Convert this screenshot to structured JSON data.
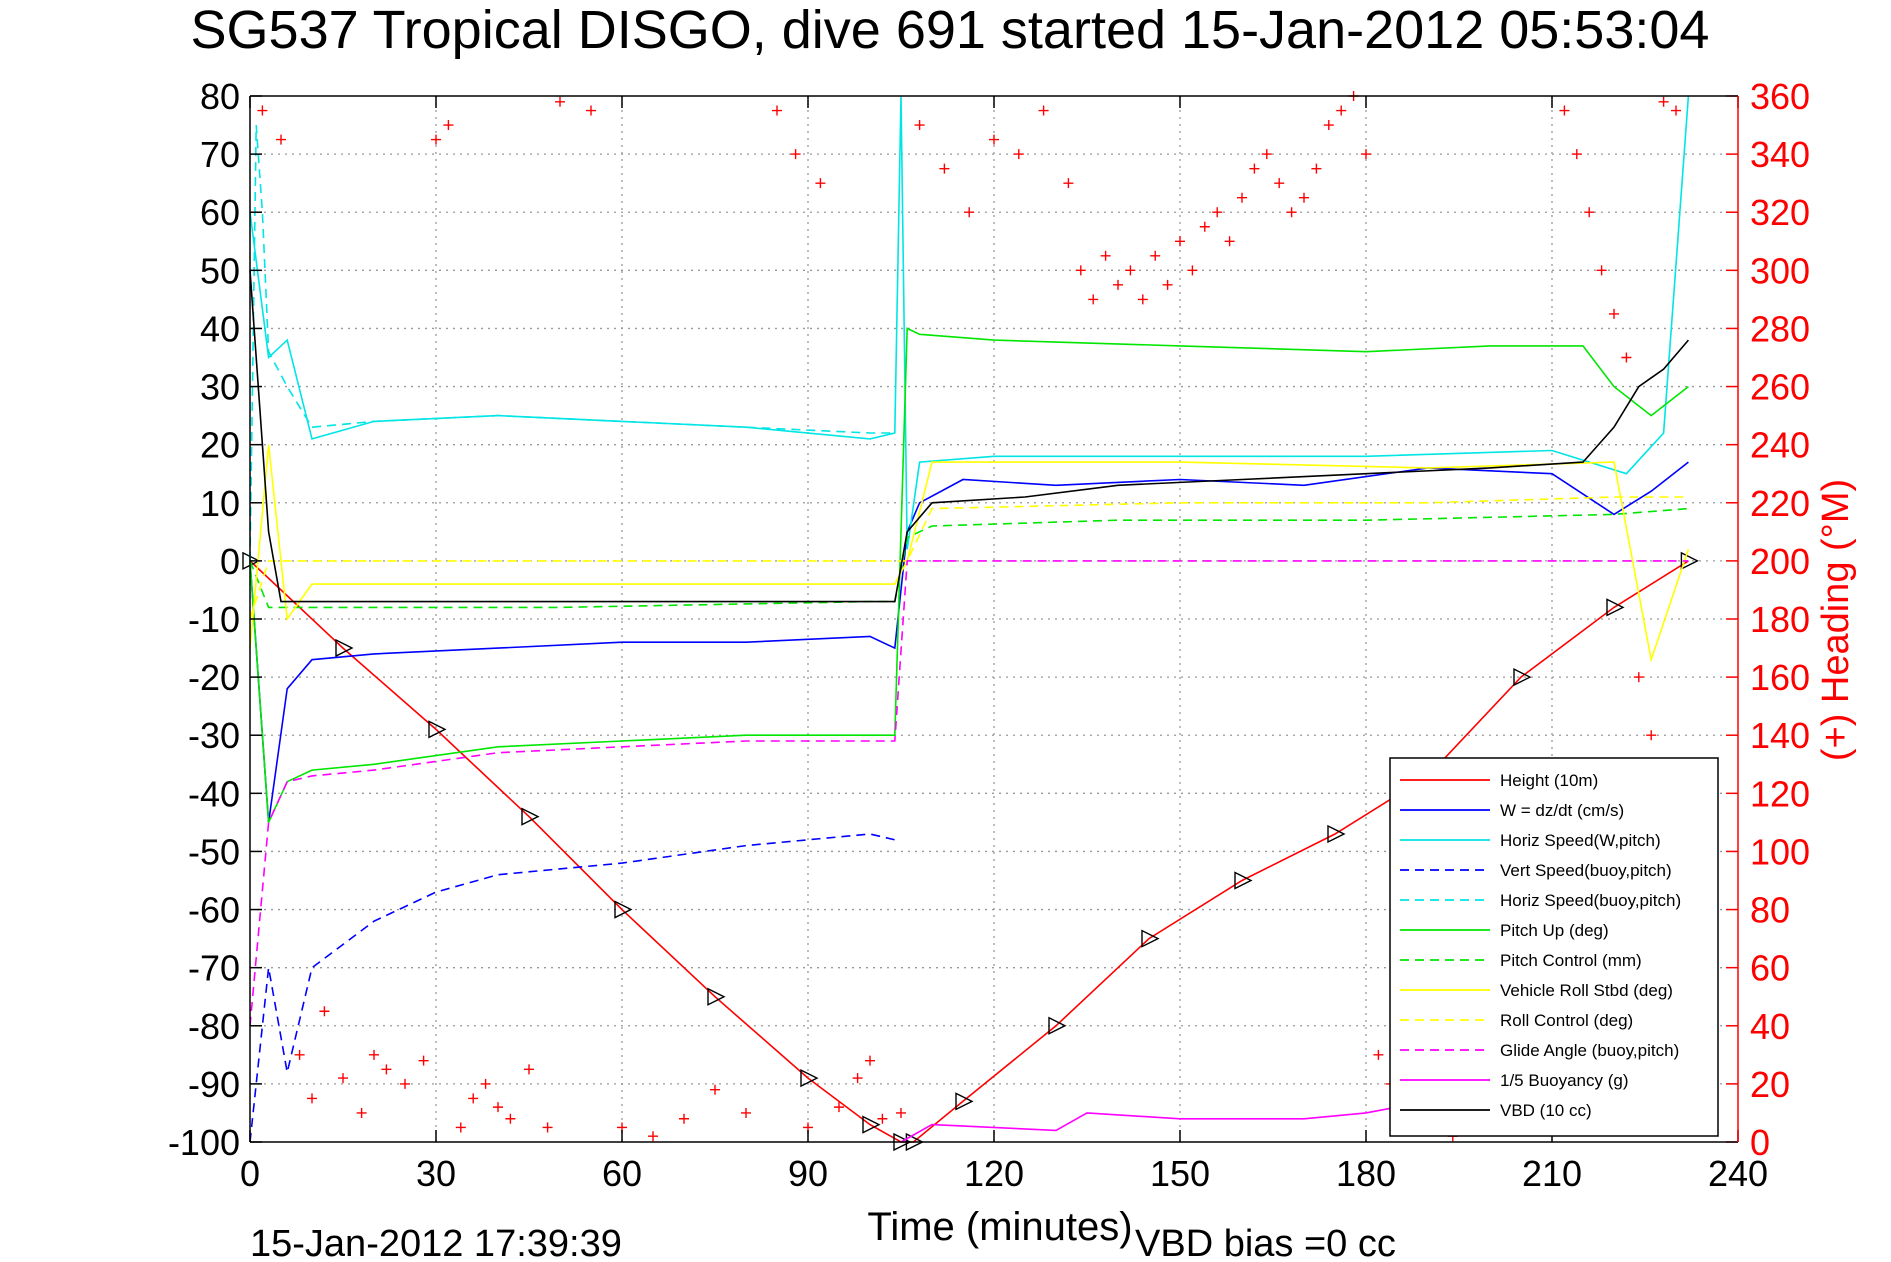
{
  "chart_data": {
    "type": "line",
    "title": "SG537 Tropical DISGO, dive 691 started 15-Jan-2012 05:53:04",
    "xlabel": "Time (minutes)",
    "ylabel_right": "(+) Heading (°M)",
    "footer_left": "15-Jan-2012 17:39:39",
    "footer_right": "VBD bias =0 cc",
    "xlim": [
      0,
      240
    ],
    "ylim": [
      -100,
      80
    ],
    "ylim_right": [
      0,
      360
    ],
    "x_ticks": [
      "0",
      "30",
      "60",
      "90",
      "120",
      "150",
      "180",
      "210",
      "240"
    ],
    "y_ticks": [
      "80",
      "70",
      "60",
      "50",
      "40",
      "30",
      "20",
      "10",
      "0",
      "-10",
      "-20",
      "-30",
      "-40",
      "-50",
      "-60",
      "-70",
      "-80",
      "-90",
      "-100"
    ],
    "y_ticks_right": [
      "360",
      "340",
      "320",
      "300",
      "280",
      "260",
      "240",
      "220",
      "200",
      "180",
      "160",
      "140",
      "120",
      "100",
      "80",
      "60",
      "40",
      "20",
      "0"
    ],
    "grid": true,
    "legend_position": "bottom-right",
    "colors": {
      "axis": "#000000",
      "heading": "#ff0000",
      "grid": "#999999"
    },
    "series": [
      {
        "name": "Height (10m)",
        "color": "#ff0000",
        "dash": "solid",
        "marker": "triangle",
        "x": [
          0,
          15,
          30,
          45,
          60,
          75,
          90,
          100,
          105,
          107,
          115,
          130,
          145,
          160,
          175,
          190,
          205,
          220,
          232
        ],
        "y": [
          0,
          -15,
          -29,
          -44,
          -60,
          -75,
          -89,
          -97,
          -100,
          -100,
          -93,
          -80,
          -65,
          -55,
          -47,
          -37,
          -20,
          -8,
          0
        ]
      },
      {
        "name": "W = dz/dt (cm/s)",
        "color": "#0000ff",
        "dash": "solid",
        "x": [
          0,
          3,
          6,
          10,
          20,
          40,
          60,
          80,
          100,
          104,
          106,
          108,
          115,
          130,
          150,
          170,
          190,
          210,
          220,
          226,
          232
        ],
        "y": [
          0,
          -45,
          -22,
          -17,
          -16,
          -15,
          -14,
          -14,
          -13,
          -15,
          5,
          10,
          14,
          13,
          14,
          13,
          16,
          15,
          8,
          12,
          17
        ]
      },
      {
        "name": "Horiz Speed(W,pitch)",
        "color": "#00e5e5",
        "dash": "solid",
        "x": [
          0,
          3,
          6,
          10,
          20,
          40,
          60,
          80,
          100,
          104,
          105,
          106,
          108,
          120,
          150,
          180,
          210,
          222,
          228,
          232
        ],
        "y": [
          60,
          35,
          38,
          21,
          24,
          25,
          24,
          23,
          21,
          22,
          80,
          2,
          17,
          18,
          18,
          18,
          19,
          15,
          22,
          80
        ]
      },
      {
        "name": "Vert Speed(buoy,pitch)",
        "color": "#0000ff",
        "dash": "dashed",
        "x": [
          0,
          3,
          6,
          10,
          20,
          30,
          40,
          60,
          80,
          100,
          104
        ],
        "y": [
          -100,
          -70,
          -88,
          -70,
          -62,
          -57,
          -54,
          -52,
          -49,
          -47,
          -48
        ]
      },
      {
        "name": "Horiz Speed(buoy,pitch)",
        "color": "#00e5e5",
        "dash": "dashed",
        "x": [
          0,
          1,
          2,
          3,
          6,
          10,
          20,
          40,
          60,
          80,
          100,
          104
        ],
        "y": [
          0,
          75,
          60,
          36,
          30,
          23,
          24,
          25,
          24,
          23,
          22,
          22
        ]
      },
      {
        "name": "Pitch Up (deg)",
        "color": "#00e600",
        "dash": "solid",
        "x": [
          0,
          3,
          6,
          10,
          20,
          40,
          60,
          80,
          100,
          104,
          106,
          108,
          120,
          150,
          180,
          200,
          215,
          220,
          226,
          232
        ],
        "y": [
          0,
          -45,
          -38,
          -36,
          -35,
          -32,
          -31,
          -30,
          -30,
          -30,
          40,
          39,
          38,
          37,
          36,
          37,
          37,
          30,
          25,
          30
        ]
      },
      {
        "name": "Pitch Control (mm)",
        "color": "#00e600",
        "dash": "dashed",
        "x": [
          0,
          3,
          10,
          50,
          100,
          104,
          106,
          110,
          140,
          180,
          220,
          232
        ],
        "y": [
          0,
          -8,
          -8,
          -8,
          -7,
          -7,
          4,
          6,
          7,
          7,
          8,
          9
        ]
      },
      {
        "name": "Vehicle Roll Stbd (deg)",
        "color": "#ffff00",
        "dash": "solid",
        "x": [
          0,
          3,
          6,
          10,
          40,
          80,
          100,
          104,
          106,
          110,
          150,
          190,
          220,
          226,
          232
        ],
        "y": [
          -15,
          20,
          -10,
          -4,
          -4,
          -4,
          -4,
          -4,
          0,
          17,
          17,
          16,
          17,
          -17,
          2
        ]
      },
      {
        "name": "Roll Control (deg)",
        "color": "#ffff00",
        "dash": "dashed",
        "x": [
          0,
          3,
          10,
          50,
          100,
          104,
          106,
          110,
          150,
          190,
          220,
          232
        ],
        "y": [
          -10,
          0,
          0,
          0,
          0,
          0,
          0,
          9,
          10,
          10,
          11,
          11
        ]
      },
      {
        "name": "Glide Angle (buoy,pitch)",
        "color": "#ff00ff",
        "dash": "dashed",
        "x": [
          0,
          3,
          6,
          10,
          20,
          40,
          60,
          80,
          100,
          104,
          106,
          232
        ],
        "y": [
          -80,
          -45,
          -38,
          -37,
          -36,
          -33,
          -32,
          -31,
          -31,
          -31,
          0,
          0
        ]
      },
      {
        "name": "1/5 Buoyancy (g)",
        "color": "#ff00ff",
        "dash": "solid",
        "x": [
          105,
          110,
          130,
          135,
          150,
          170,
          180,
          185,
          232
        ],
        "y": [
          -100,
          -97,
          -98,
          -95,
          -96,
          -96,
          -95,
          -94,
          -93
        ]
      },
      {
        "name": "VBD (10 cc)",
        "color": "#000000",
        "dash": "solid",
        "x": [
          0,
          3,
          5,
          10,
          50,
          100,
          104,
          106,
          110,
          125,
          140,
          160,
          180,
          200,
          215,
          220,
          224,
          228,
          232
        ],
        "y": [
          50,
          5,
          -7,
          -7,
          -7,
          -7,
          -7,
          5,
          10,
          11,
          13,
          14,
          15,
          16,
          17,
          23,
          30,
          33,
          38
        ]
      }
    ],
    "heading_series": {
      "name": "Heading",
      "color": "#ff0000",
      "marker": "plus",
      "axis": "right",
      "x": [
        2,
        5,
        8,
        10,
        12,
        15,
        18,
        20,
        22,
        25,
        28,
        30,
        32,
        34,
        36,
        38,
        40,
        42,
        45,
        48,
        50,
        55,
        60,
        65,
        70,
        75,
        80,
        85,
        88,
        90,
        92,
        95,
        98,
        100,
        102,
        105,
        108,
        112,
        116,
        120,
        124,
        128,
        132,
        134,
        136,
        138,
        140,
        142,
        144,
        146,
        148,
        150,
        152,
        154,
        156,
        158,
        160,
        162,
        164,
        166,
        168,
        170,
        172,
        174,
        176,
        178,
        180,
        182,
        184,
        186,
        188,
        190,
        192,
        194,
        196,
        198,
        200,
        202,
        204,
        206,
        208,
        210,
        212,
        214,
        216,
        218,
        220,
        222,
        224,
        226,
        228,
        230
      ],
      "y": [
        355,
        345,
        30,
        15,
        45,
        22,
        10,
        30,
        25,
        20,
        28,
        345,
        350,
        5,
        15,
        20,
        12,
        8,
        25,
        5,
        358,
        355,
        5,
        2,
        8,
        18,
        10,
        355,
        340,
        5,
        330,
        12,
        22,
        28,
        8,
        10,
        350,
        335,
        320,
        345,
        340,
        355,
        330,
        300,
        290,
        305,
        295,
        300,
        290,
        305,
        295,
        310,
        300,
        315,
        320,
        310,
        325,
        335,
        340,
        330,
        320,
        325,
        335,
        350,
        355,
        360,
        340,
        30,
        20,
        25,
        10,
        15,
        8,
        2,
        5,
        12,
        18,
        25,
        30,
        20,
        10,
        5,
        355,
        340,
        320,
        300,
        285,
        270,
        160,
        140,
        358,
        355
      ]
    }
  }
}
